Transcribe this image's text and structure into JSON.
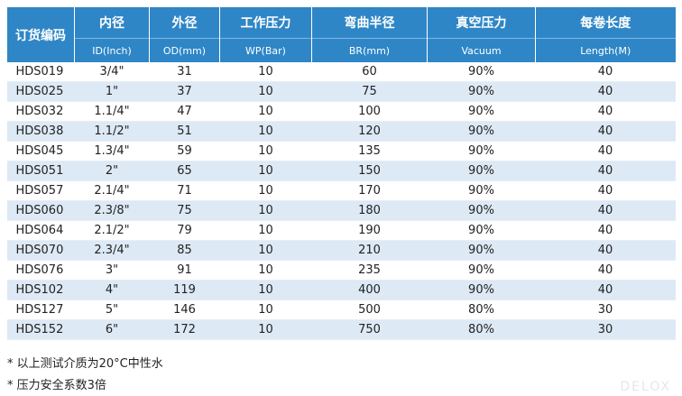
{
  "table": {
    "header_top": [
      "订货编码",
      "内径",
      "外径",
      "工作压力",
      "弯曲半径",
      "真空压力",
      "每卷长度"
    ],
    "header_sub": [
      "ID(Inch)",
      "OD(mm)",
      "WP(Bar)",
      "BR(mm)",
      "Vacuum",
      "Length(M)"
    ],
    "rows": [
      [
        "HDS019",
        "3/4\"",
        "31",
        "10",
        "60",
        "90%",
        "40"
      ],
      [
        "HDS025",
        "1\"",
        "37",
        "10",
        "75",
        "90%",
        "40"
      ],
      [
        "HDS032",
        "1.1/4\"",
        "47",
        "10",
        "100",
        "90%",
        "40"
      ],
      [
        "HDS038",
        "1.1/2\"",
        "51",
        "10",
        "120",
        "90%",
        "40"
      ],
      [
        "HDS045",
        "1.3/4\"",
        "59",
        "10",
        "135",
        "90%",
        "40"
      ],
      [
        "HDS051",
        "2\"",
        "65",
        "10",
        "150",
        "90%",
        "40"
      ],
      [
        "HDS057",
        "2.1/4\"",
        "71",
        "10",
        "170",
        "90%",
        "40"
      ],
      [
        "HDS060",
        "2.3/8\"",
        "75",
        "10",
        "180",
        "90%",
        "40"
      ],
      [
        "HDS064",
        "2.1/2\"",
        "79",
        "10",
        "190",
        "90%",
        "40"
      ],
      [
        "HDS070",
        "2.3/4\"",
        "85",
        "10",
        "210",
        "90%",
        "40"
      ],
      [
        "HDS076",
        "3\"",
        "91",
        "10",
        "235",
        "90%",
        "40"
      ],
      [
        "HDS102",
        "4\"",
        "119",
        "10",
        "400",
        "90%",
        "40"
      ],
      [
        "HDS127",
        "5\"",
        "146",
        "10",
        "500",
        "80%",
        "30"
      ],
      [
        "HDS152",
        "6\"",
        "172",
        "10",
        "750",
        "80%",
        "30"
      ]
    ]
  },
  "notes": [
    "* 以上测试介质为20°C中性水",
    "* 压力安全系数3倍"
  ],
  "watermark": "DELOX"
}
